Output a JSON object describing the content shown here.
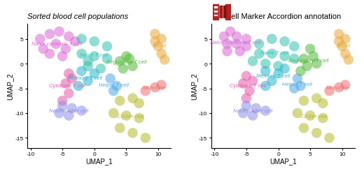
{
  "chart_data": [
    {
      "type": "scatter",
      "title": "Sorted blood cell populations",
      "x_label": "UMAP_1",
      "y_label": "UMAP_2",
      "xlim": [
        -10.5,
        12
      ],
      "ylim": [
        -17,
        8
      ],
      "xticks": [
        -10,
        -5,
        0,
        5,
        10
      ],
      "yticks": [
        -15,
        -10,
        -5,
        0,
        5
      ],
      "series": [
        {
          "name": "Naive cytotoxic T cell",
          "color": "#d966d6",
          "x": [
            -8.5,
            -7,
            -5.5,
            -4,
            -8,
            -6,
            -4.5,
            -7,
            -5,
            -3
          ],
          "y": [
            5,
            6,
            6.5,
            5.5,
            3,
            4,
            3,
            2,
            1.5,
            4.5
          ]
        },
        {
          "name": "Naive T cell",
          "color": "#33c1b0",
          "x": [
            -2,
            0,
            2,
            -2,
            0,
            2,
            -1,
            1,
            -1
          ],
          "y": [
            5,
            4.5,
            3.5,
            2,
            1.5,
            1,
            -0.5,
            -1,
            0.5
          ]
        },
        {
          "name": "Cytotoxic T cell",
          "color": "#e45aa8",
          "x": [
            -4,
            -4.5,
            -4,
            -5,
            -3.5
          ],
          "y": [
            -2,
            -4,
            -6,
            -7.5,
            -3
          ]
        },
        {
          "name": "Memory T cell",
          "color": "#29b5cf",
          "x": [
            -2,
            0,
            -1,
            -2.5
          ],
          "y": [
            -1.5,
            -2,
            -3.5,
            -4.5
          ]
        },
        {
          "name": "Helper T cell",
          "color": "#4fa8e8",
          "x": [
            2.5,
            3.5,
            3
          ],
          "y": [
            -3,
            -4.5,
            -5.5
          ]
        },
        {
          "name": "Regulatory T cell",
          "color": "#52b83a",
          "x": [
            4.5,
            6,
            5.5,
            4,
            5
          ],
          "y": [
            -1,
            -0.5,
            1,
            0.5,
            1.5
          ]
        },
        {
          "name": "B cell",
          "color": "#e8a838",
          "x": [
            9.5,
            10.5,
            10,
            10.5,
            11,
            9.5
          ],
          "y": [
            6,
            5,
            3.5,
            2,
            0.8,
            4.5
          ]
        },
        {
          "name": "Monocyte",
          "color": "#f07070",
          "x": [
            8,
            9.5,
            10.5
          ],
          "y": [
            -5.5,
            -4.8,
            -4.3
          ]
        },
        {
          "name": "Natural killer cell",
          "color": "#8f8fe8",
          "x": [
            -5,
            -3.5,
            -2,
            -4,
            -5.5
          ],
          "y": [
            -8.5,
            -9,
            -9.5,
            -10.5,
            -10
          ]
        },
        {
          "name": "CD34+ cell",
          "color": "#b5b82a",
          "x": [
            4,
            6,
            7,
            3,
            5,
            7,
            4,
            6,
            8
          ],
          "y": [
            -7.5,
            -7,
            -8,
            -10,
            -10.5,
            -11,
            -13,
            -14,
            -15
          ]
        }
      ]
    },
    {
      "type": "scatter",
      "title": "Cell Marker Accordion annotation",
      "x_label": "UMAP_1",
      "y_label": "UMAP_2",
      "xlim": [
        -10.5,
        12
      ],
      "ylim": [
        -17,
        8
      ],
      "xticks": [
        -10,
        -5,
        0,
        5,
        10
      ],
      "yticks": [
        -15,
        -10,
        -5,
        0,
        5
      ],
      "series": [
        {
          "name": "Naive cytotoxic T cell",
          "color": "#d966d6",
          "x": [
            -8.5,
            -7.5,
            -6.5,
            -8,
            -6.5,
            -5,
            -8,
            -6,
            -5
          ],
          "y": [
            5.5,
            6.5,
            5.5,
            4,
            4,
            5,
            2.5,
            2.5,
            3.5
          ]
        },
        {
          "name": "Naive T cell",
          "color": "#33c1b0",
          "x": [
            -3,
            -1,
            1,
            2.5,
            -3,
            -1,
            1,
            2.5,
            -2,
            0,
            -4
          ],
          "y": [
            4,
            5,
            4.5,
            3.5,
            2,
            2,
            1.5,
            1,
            0,
            -0.5,
            0.5
          ]
        },
        {
          "name": "Cytotoxic T cell",
          "color": "#e45aa8",
          "x": [
            -5,
            -5.5,
            -4.5,
            -5,
            -4
          ],
          "y": [
            -2.5,
            -4,
            -5.5,
            -7,
            -3.5
          ]
        },
        {
          "name": "Memory T cell",
          "color": "#29b5cf",
          "x": [
            -2,
            0,
            -1,
            -2,
            1
          ],
          "y": [
            -1.5,
            -2,
            -3.5,
            -4.5,
            -1
          ]
        },
        {
          "name": "Helper T cell",
          "color": "#4fa8e8",
          "x": [
            3,
            3.5,
            2.5
          ],
          "y": [
            -3,
            -4.5,
            -5
          ]
        },
        {
          "name": "Regulatory T cell",
          "color": "#52b83a",
          "x": [
            4,
            5.5,
            6,
            4.5,
            3.5,
            5
          ],
          "y": [
            1,
            1.5,
            0,
            -0.5,
            -1.5,
            3
          ]
        },
        {
          "name": "B cell",
          "color": "#e8a838",
          "x": [
            9.5,
            10.5,
            10,
            10.5,
            11,
            9.5
          ],
          "y": [
            6,
            5,
            3.5,
            2,
            0.8,
            4.5
          ]
        },
        {
          "name": "Monocyte",
          "color": "#f07070",
          "x": [
            8,
            9.5,
            10.5
          ],
          "y": [
            -5.5,
            -4.8,
            -4.3
          ]
        },
        {
          "name": "Natural killer cell",
          "color": "#8f8fe8",
          "x": [
            -5,
            -3.5,
            -2,
            -4,
            -5.5
          ],
          "y": [
            -8.5,
            -9,
            -9.5,
            -10.5,
            -10
          ]
        },
        {
          "name": "CD34+ cell",
          "color": "#b5b82a",
          "x": [
            4,
            6,
            7,
            3,
            5,
            7,
            4,
            6,
            8
          ],
          "y": [
            -7.5,
            -7,
            -8,
            -10,
            -10.5,
            -11,
            -13,
            -14,
            -15
          ]
        }
      ]
    }
  ]
}
